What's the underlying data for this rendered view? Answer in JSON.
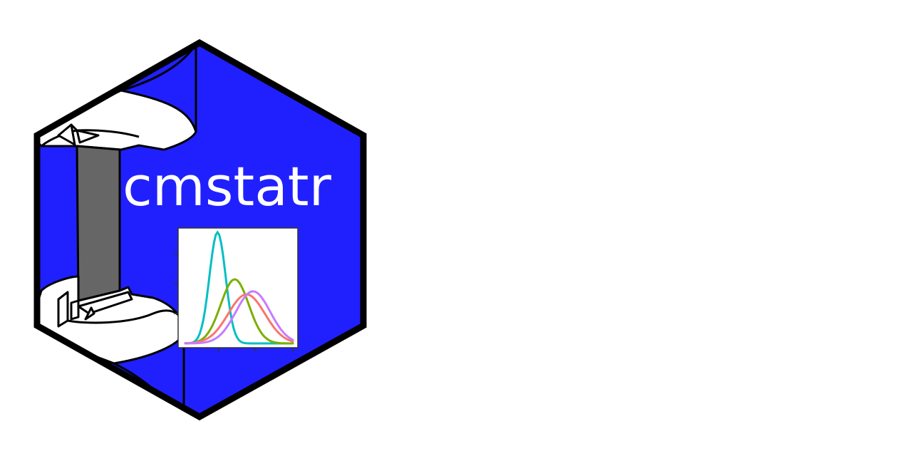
{
  "logo": {
    "package_name": "cmstatr",
    "colors": {
      "hex_fill": "#2020ff",
      "hex_border": "#000000",
      "specimen_face": "#ffffff",
      "specimen_gauge": "#666666",
      "text": "#ffffff",
      "plot_background": "#ffffff"
    },
    "icon": "dogbone-tensile-specimen-icon",
    "mini_plot": {
      "type": "line",
      "curves": [
        {
          "color": "#00bfc4",
          "mean": 0.3,
          "sd": 0.075
        },
        {
          "color": "#7cae00",
          "mean": 0.46,
          "sd": 0.13
        },
        {
          "color": "#f8766d",
          "mean": 0.57,
          "sd": 0.17
        },
        {
          "color": "#c77cff",
          "mean": 0.63,
          "sd": 0.16
        }
      ]
    }
  }
}
